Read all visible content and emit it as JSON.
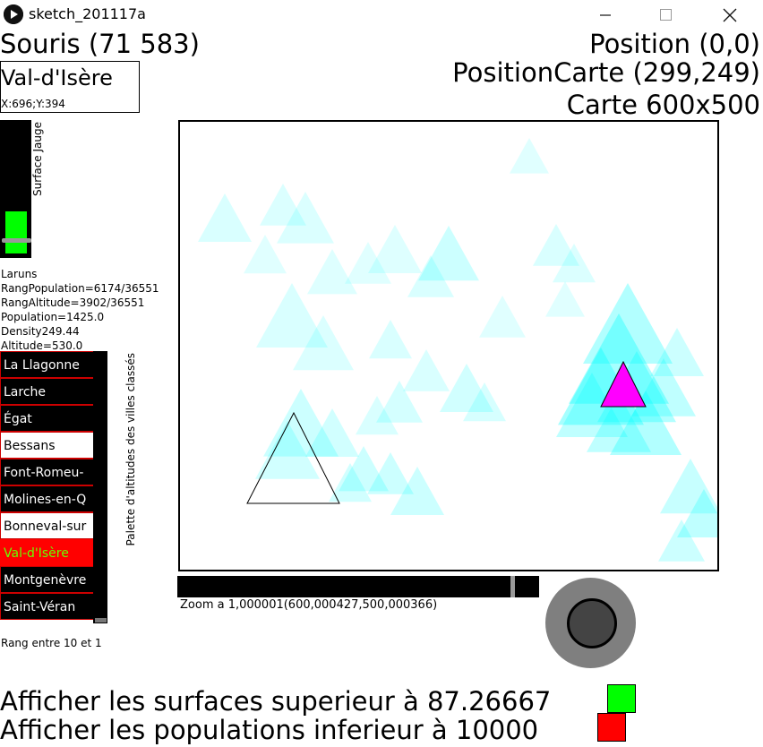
{
  "window": {
    "title": "sketch_201117a",
    "minimize_icon": "minimize-icon",
    "maximize_icon": "maximize-icon",
    "close_icon": "close-icon"
  },
  "header": {
    "mouse": "Souris (71 583)",
    "position": "Position (0,0)",
    "position_map": "PositionCarte (299,249)",
    "map_size": "Carte 600x500"
  },
  "hover": {
    "city": "Val-d'Isère",
    "coords": "X:696;Y:394"
  },
  "gauge": {
    "label": "Surface Jauge",
    "fill_color": "#00ff00",
    "level": 0.33
  },
  "info": {
    "lines": [
      "Laruns",
      "RangPopulation=6174/36551",
      "RangAltitude=3902/36551",
      "Population=1425.0",
      "Density249.44",
      "Altitude=530.0"
    ]
  },
  "palette": {
    "label": "Palette d'altitudes des villes classés",
    "items": [
      {
        "name": "La Llagonne",
        "style": "dark"
      },
      {
        "name": "Larche",
        "style": "dark"
      },
      {
        "name": "Égat",
        "style": "dark"
      },
      {
        "name": "Bessans",
        "style": "light"
      },
      {
        "name": "Font-Romeu-",
        "style": "dark"
      },
      {
        "name": "Molines-en-Q",
        "style": "dark"
      },
      {
        "name": "Bonneval-sur",
        "style": "light"
      },
      {
        "name": "Val-d'Isère",
        "style": "sel"
      },
      {
        "name": "Montgenèvre",
        "style": "dark"
      },
      {
        "name": "Saint-Véran",
        "style": "dark"
      }
    ],
    "rank_text": "Rang entre 10 et 1"
  },
  "map": {
    "triangle_color": "#00ffff",
    "highlight_color": "#ff00ff"
  },
  "zoom": {
    "text": "Zoom a 1,000001(600,000427,500,000366)",
    "level": 0.93
  },
  "filters": {
    "surface_text": "Afficher les surfaces superieur à 87.26667",
    "surface_color": "#00ff00",
    "population_text": "Afficher les populations inferieur à 10000",
    "population_color": "#ff0000"
  }
}
